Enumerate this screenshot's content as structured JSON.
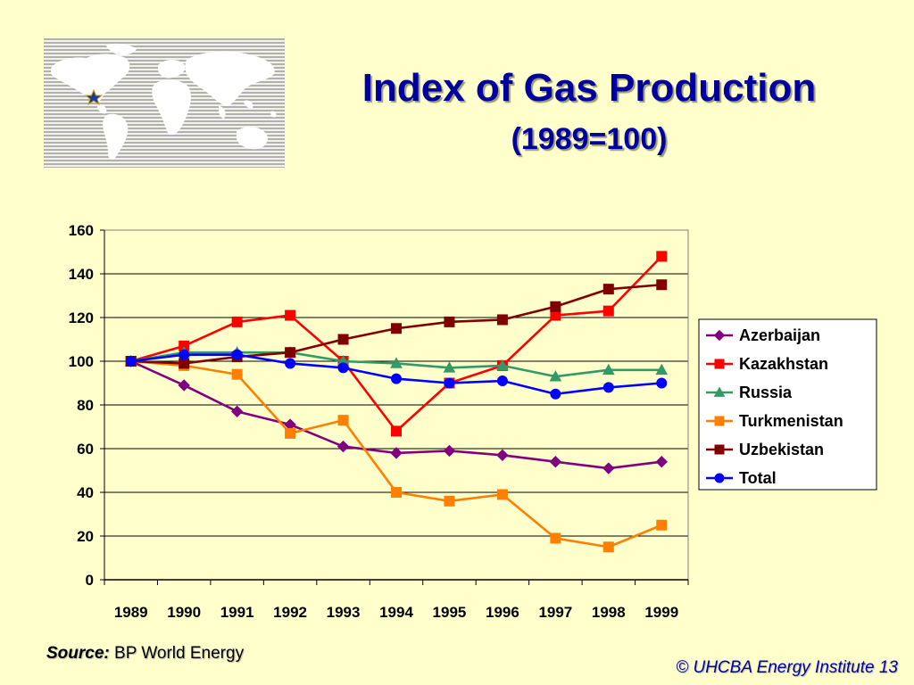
{
  "slide": {
    "title": "Index of Gas Production",
    "subtitle": "(1989=100)",
    "source_label": "Source:",
    "source_text": "BP World Energy",
    "copyright": "© UHCBA Energy Institute 13",
    "logo_icon": "world-map-icon"
  },
  "chart_data": {
    "type": "line",
    "title": "Index of Gas Production",
    "subtitle": "(1989=100)",
    "xlabel": "",
    "ylabel": "",
    "x": [
      "1989",
      "1990",
      "1991",
      "1992",
      "1993",
      "1994",
      "1995",
      "1996",
      "1997",
      "1998",
      "1999"
    ],
    "ylim": [
      0,
      160
    ],
    "yticks": [
      0,
      20,
      40,
      60,
      80,
      100,
      120,
      140,
      160
    ],
    "grid": true,
    "legend_position": "right",
    "series": [
      {
        "name": "Azerbaijan",
        "color": "#800080",
        "marker": "diamond",
        "values": [
          100,
          89,
          77,
          71,
          61,
          58,
          59,
          57,
          54,
          51,
          54
        ]
      },
      {
        "name": "Kazakhstan",
        "color": "#ff0000",
        "marker": "square",
        "values": [
          100,
          107,
          118,
          121,
          100,
          68,
          90,
          98,
          121,
          123,
          148
        ]
      },
      {
        "name": "Russia",
        "color": "#339966",
        "marker": "triangle",
        "values": [
          100,
          104,
          104,
          104,
          100,
          99,
          97,
          98,
          93,
          96,
          96
        ]
      },
      {
        "name": "Turkmenistan",
        "color": "#ff8000",
        "marker": "square",
        "values": [
          100,
          98,
          94,
          67,
          73,
          40,
          36,
          39,
          19,
          15,
          25
        ]
      },
      {
        "name": "Uzbekistan",
        "color": "#800000",
        "marker": "square",
        "values": [
          100,
          99,
          102,
          104,
          110,
          115,
          118,
          119,
          125,
          133,
          135
        ]
      },
      {
        "name": "Total",
        "color": "#0000ff",
        "marker": "circle",
        "values": [
          100,
          103,
          103,
          99,
          97,
          92,
          90,
          91,
          85,
          88,
          90
        ]
      }
    ]
  }
}
